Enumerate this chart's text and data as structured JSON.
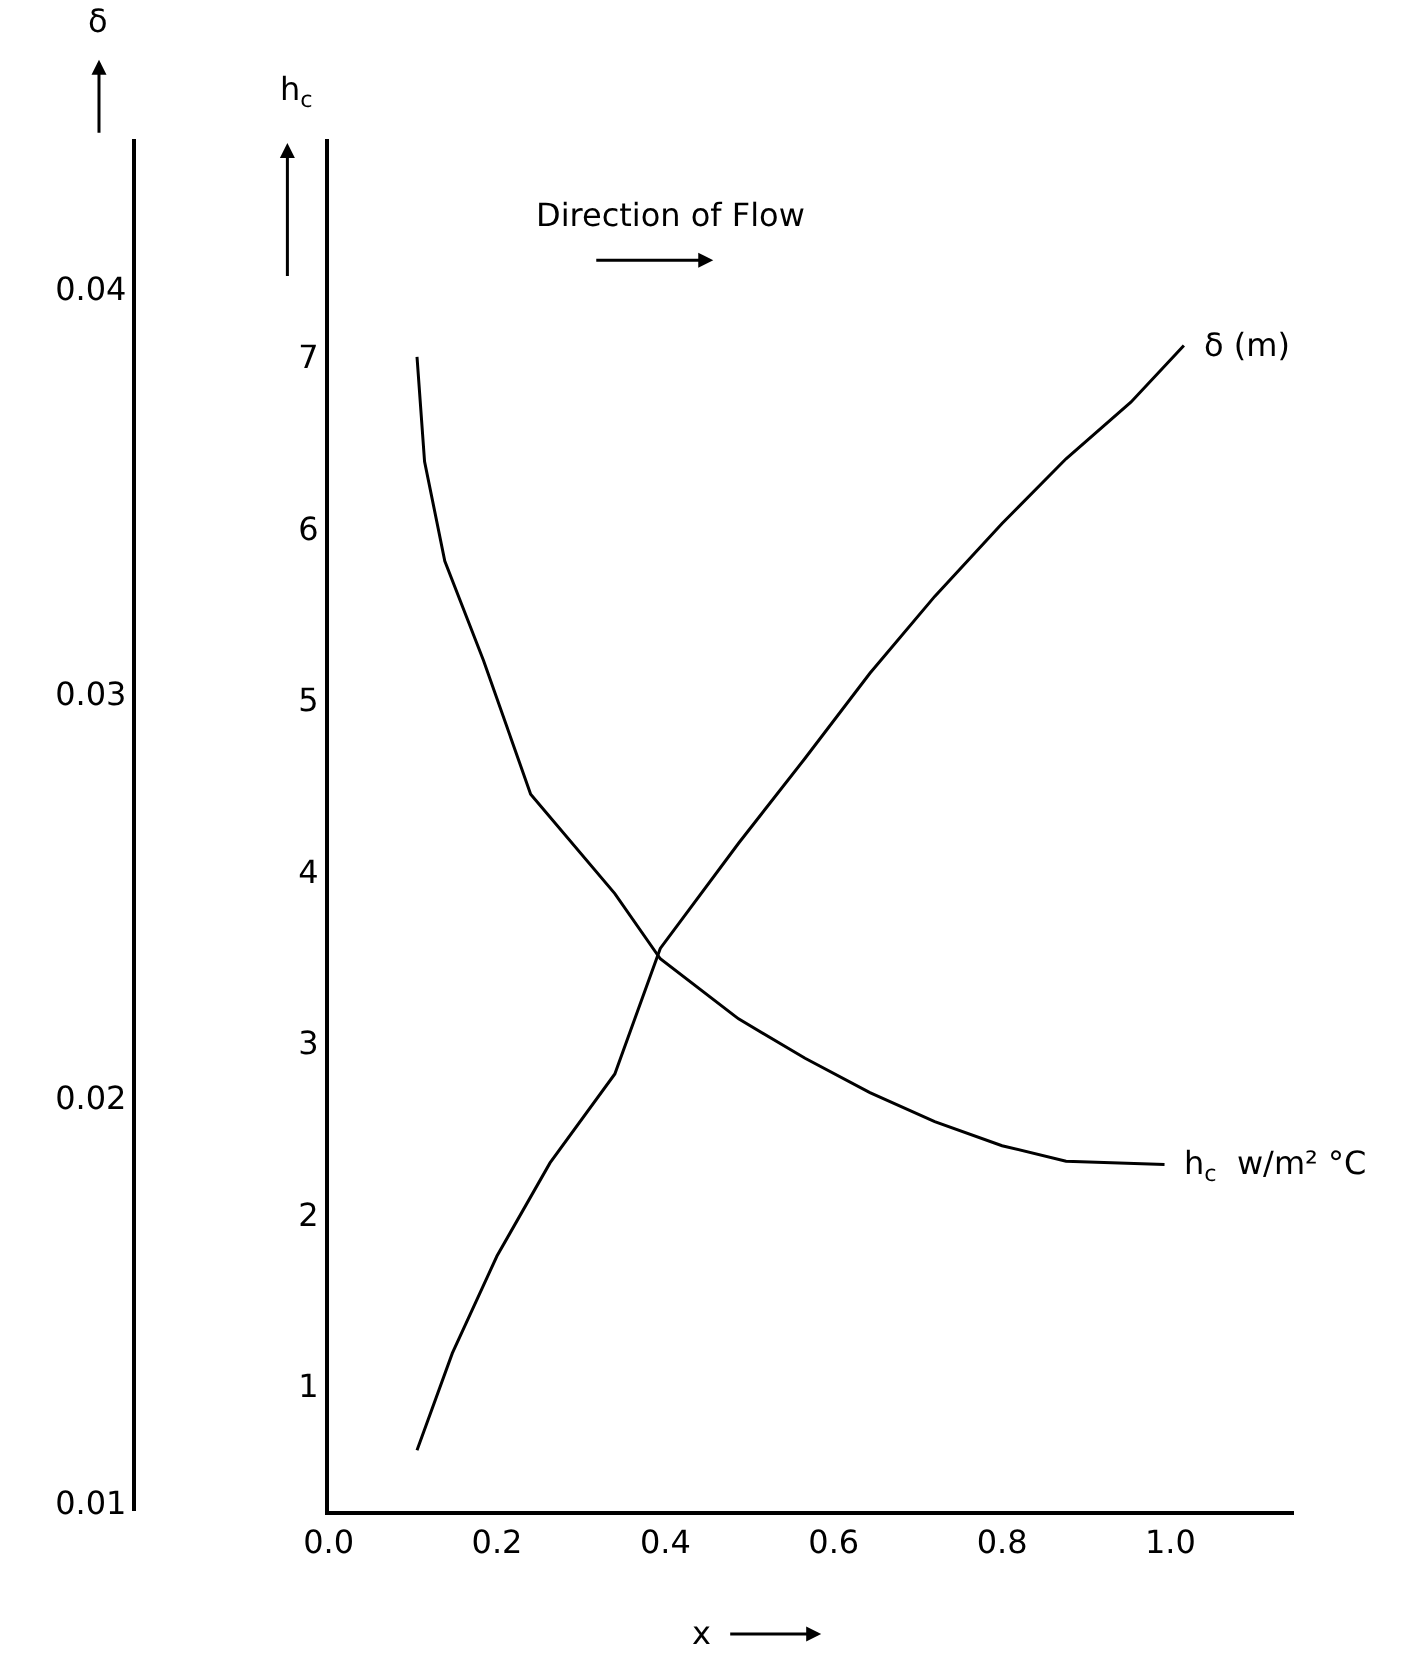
{
  "chart_data": {
    "type": "line",
    "xlabel": "x",
    "ylabel": "h$_{c}$",
    "y2label": "δ",
    "annotations": [
      "Direction of Flow"
    ],
    "series": [
      {
        "name": "h$_{c}$  w/m² °C",
        "color": "#000000",
        "x": [
          0.105,
          0.114,
          0.138,
          0.184,
          0.24,
          0.34,
          0.394,
          0.487,
          0.566,
          0.643,
          0.72,
          0.8,
          0.876,
          0.993
        ],
        "values": [
          7.0,
          6.39,
          5.81,
          5.23,
          4.45,
          3.87,
          3.49,
          3.14,
          2.91,
          2.71,
          2.54,
          2.4,
          2.31,
          2.29
        ]
      },
      {
        "name": "δ (m)",
        "color": "#000000",
        "axis": "y2",
        "x": [
          0.105,
          0.147,
          0.2,
          0.263,
          0.34,
          0.394,
          0.487,
          0.566,
          0.643,
          0.72,
          0.8,
          0.876,
          0.953,
          1.016
        ],
        "values": [
          0.0113,
          0.0137,
          0.0161,
          0.0184,
          0.0206,
          0.0237,
          0.0263,
          0.0284,
          0.0305,
          0.0324,
          0.0342,
          0.0358,
          0.0372,
          0.0386
        ]
      }
    ],
    "xlim": [
      0,
      1.147
    ],
    "xticks": [
      {
        "value": 0,
        "label": "0.0"
      },
      0.2,
      0.4,
      0.6,
      0.8,
      {
        "value": 1,
        "label": "1.0"
      }
    ],
    "ylim": [
      0.27,
      8.27
    ],
    "yticks": [
      1,
      2,
      3,
      4,
      5,
      6,
      7
    ],
    "y2lim": [
      0.0098,
      0.0437
    ],
    "y2ticks": [
      0.01,
      0.02,
      0.03,
      0.04
    ],
    "legend": false,
    "marker": "none",
    "line_style": "solid"
  }
}
